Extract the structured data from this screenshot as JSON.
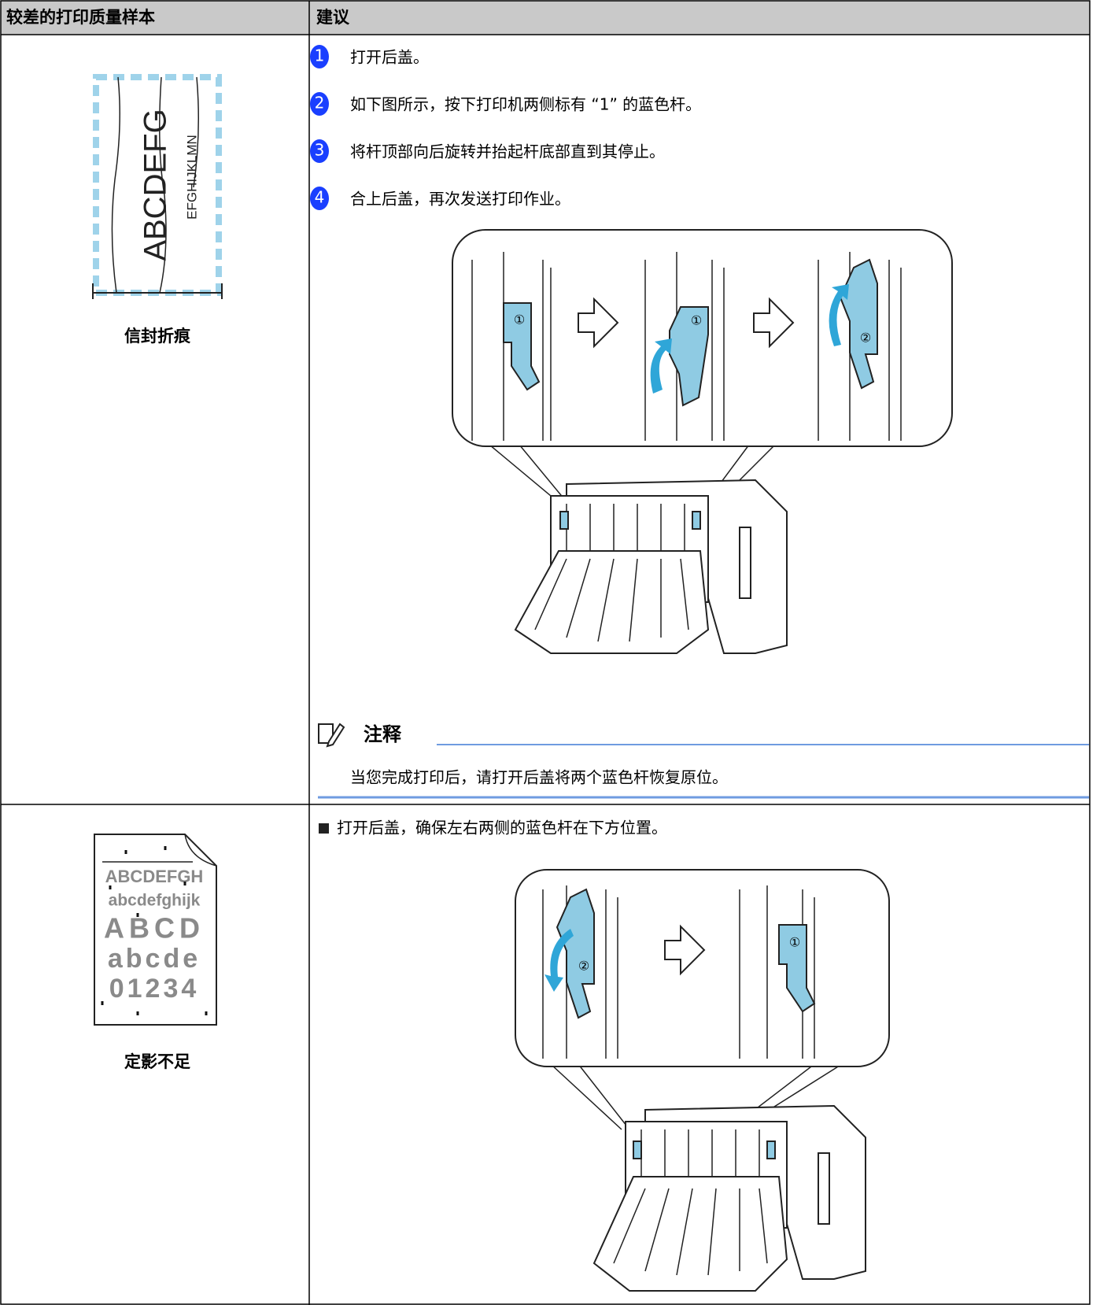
{
  "header": {
    "columns": [
      "较差的打印质量样本",
      "建议"
    ]
  },
  "rows": [
    {
      "sample": {
        "texts": [
          "ABCDEFG",
          "EFGHIJKLMN"
        ],
        "label": "信封折痕"
      },
      "steps": [
        {
          "number": "1",
          "text": "打开后盖。"
        },
        {
          "number": "2",
          "text": "如下图所示，按下打印机两侧标有 “1” 的蓝色杆。"
        },
        {
          "number": "3",
          "text": "将杆顶部向后旋转并抬起杆底部直到其停止。"
        },
        {
          "number": "4",
          "text": "合上后盖，再次发送打印作业。"
        }
      ],
      "figure": {
        "marks": [
          "①",
          "①",
          "②"
        ]
      },
      "note": {
        "title": "注释",
        "text": "当您完成打印后，请打开后盖将两个蓝色杆恢复原位。"
      }
    },
    {
      "sample": {
        "texts": [
          "ABCDEFGH",
          "abcdefghijk",
          "ABCD",
          "abcde",
          "01234"
        ],
        "label": "定影不足"
      },
      "bullet": "打开后盖，确保左右两侧的蓝色杆在下方位置。",
      "figure": {
        "marks": [
          "②",
          "①"
        ]
      }
    }
  ]
}
